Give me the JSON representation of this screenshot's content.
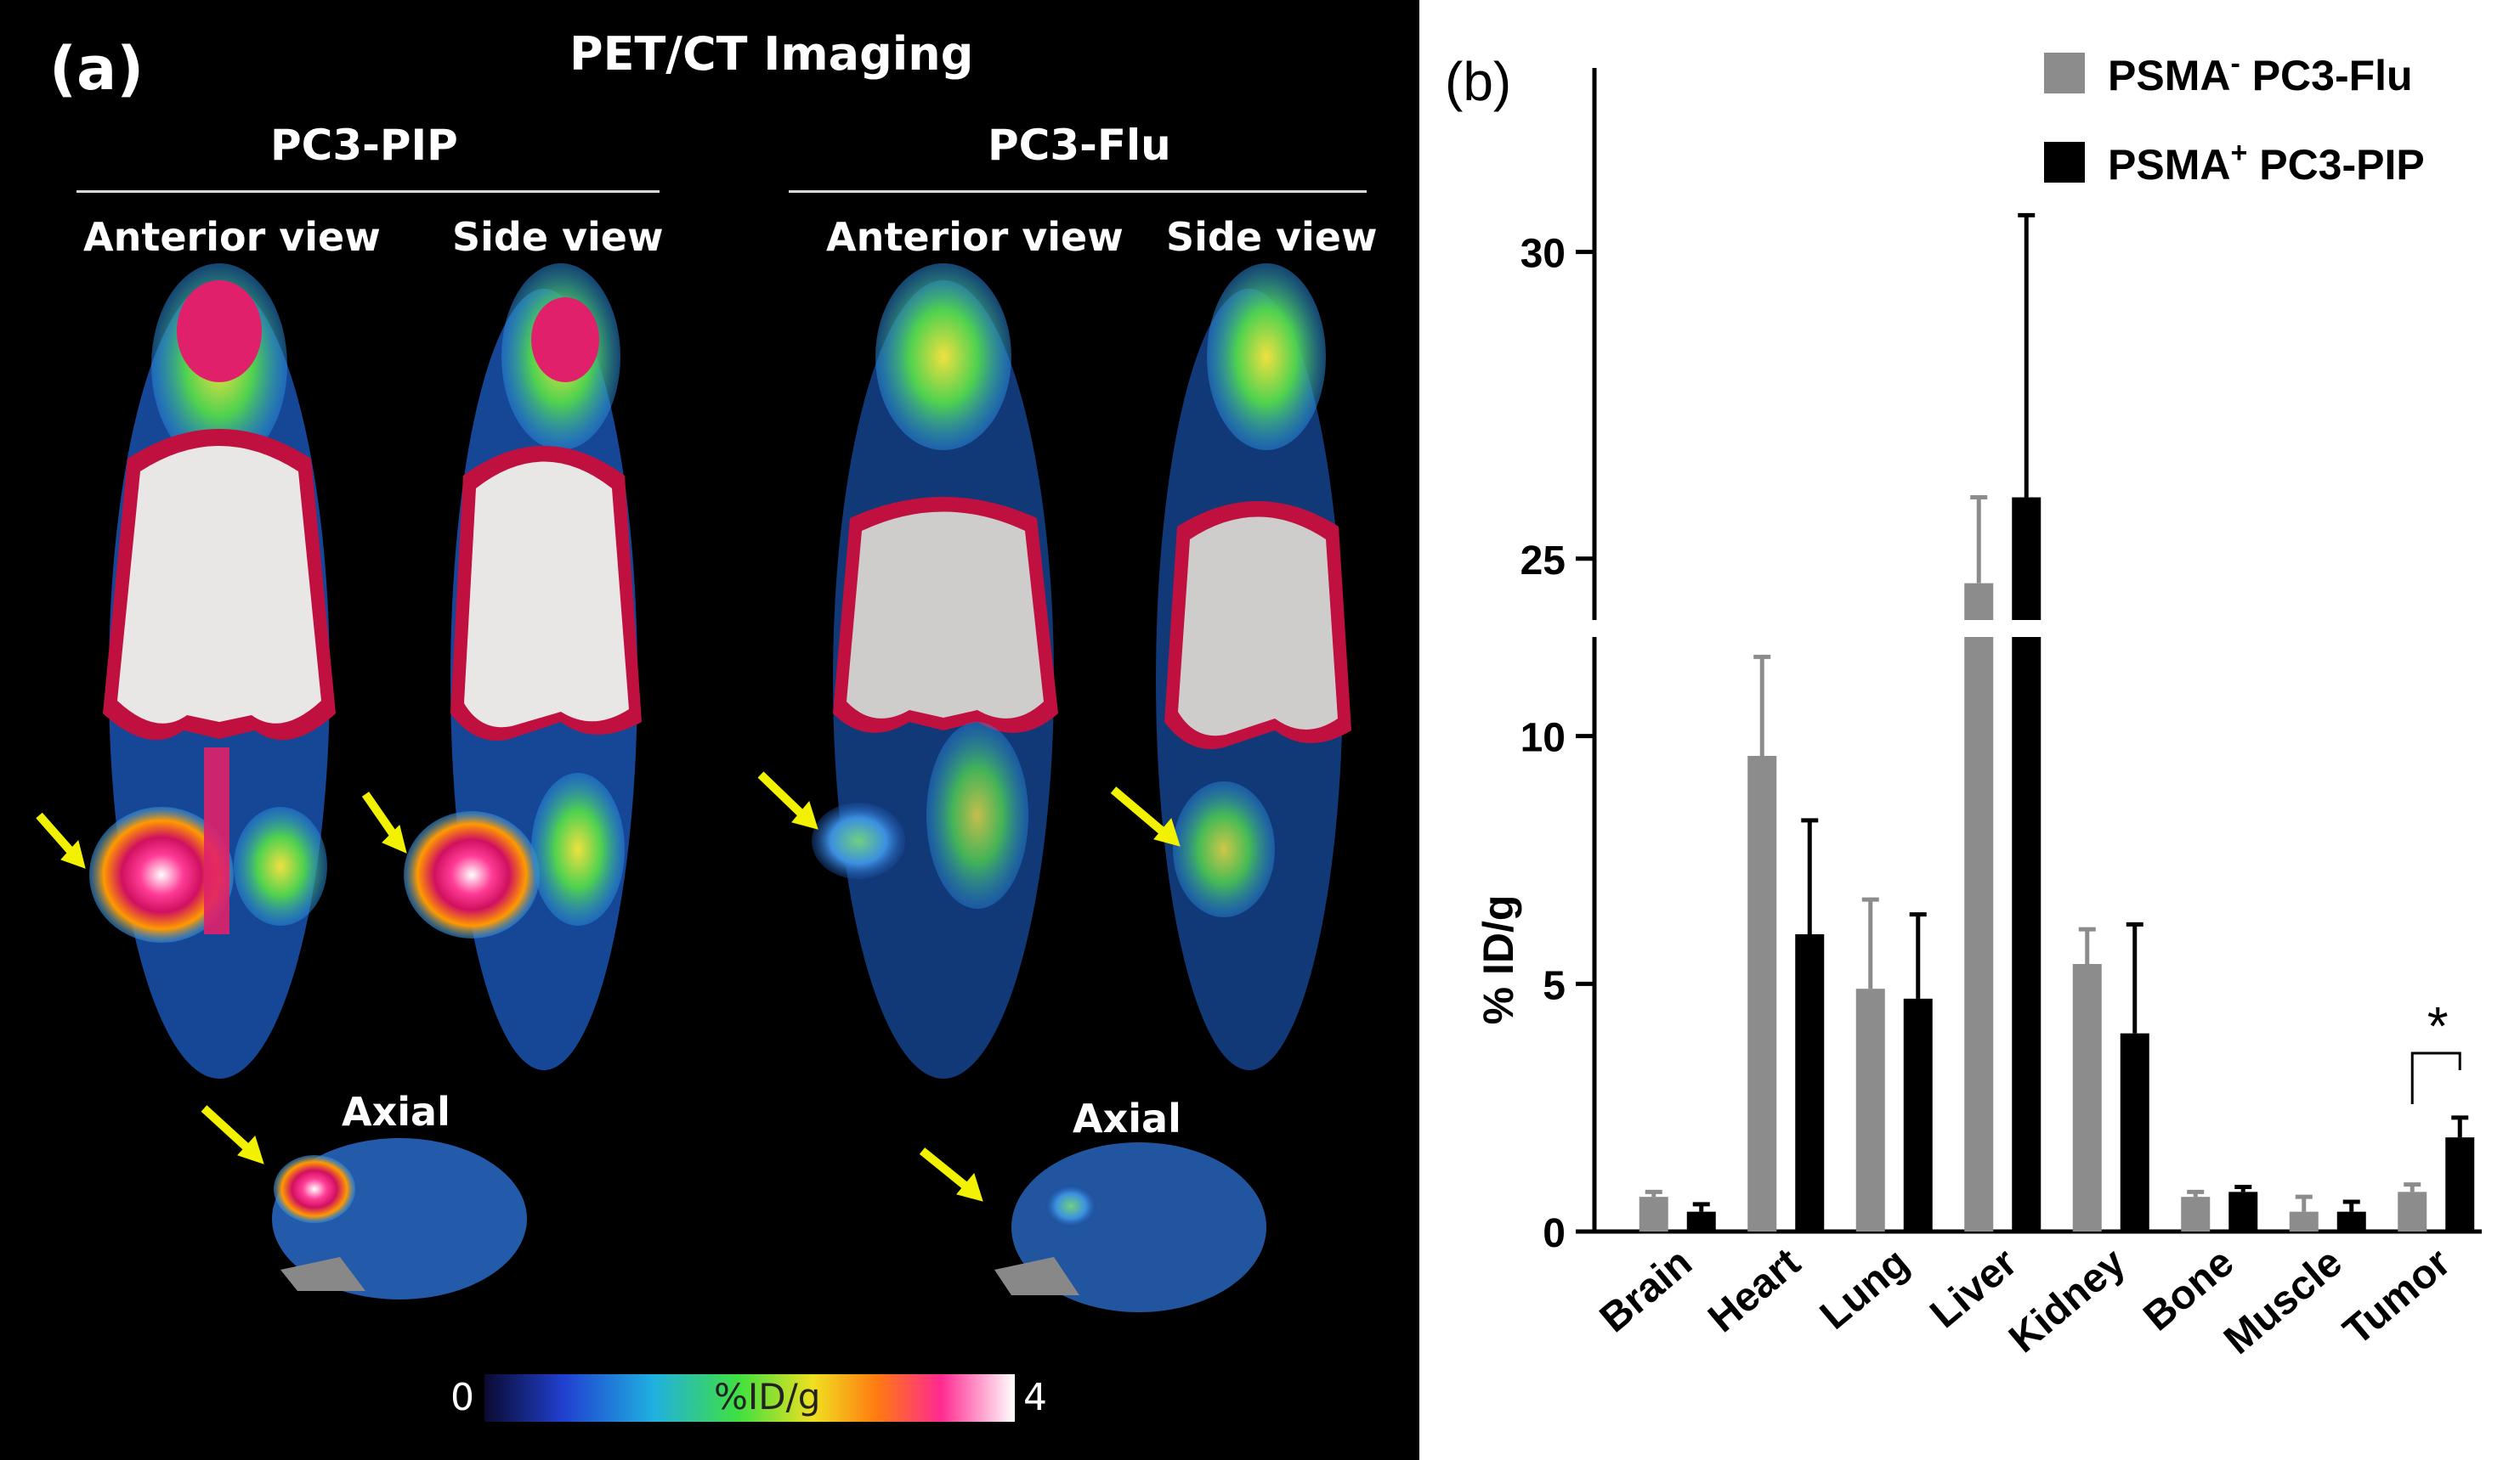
{
  "panel_a": {
    "label": "(a)",
    "title": "PET/CT Imaging",
    "groups": [
      {
        "name": "PC3-PIP",
        "views": [
          "Anterior view",
          "Side view"
        ],
        "axial": "Axial"
      },
      {
        "name": "PC3-Flu",
        "views": [
          "Anterior view",
          "Side view"
        ],
        "axial": "Axial"
      }
    ],
    "colorbar": {
      "min": "0",
      "max": "4",
      "label": "%ID/g"
    },
    "colors": {
      "background": "#000000",
      "arrow": "#f2f200"
    }
  },
  "chart_data": {
    "type": "bar",
    "panel_label": "(b)",
    "title": "",
    "xlabel": "",
    "ylabel": "% ID/g",
    "categories": [
      "Brain",
      "Heart",
      "Lung",
      "Liver",
      "Kidney",
      "Bone",
      "Muscle",
      "Tumor"
    ],
    "series": [
      {
        "name": "PSMA- PC3-Flu",
        "legend_name": "PSMA",
        "legend_sup": "-",
        "legend_suffix": " PC3-Flu",
        "color": "#8c8c8c",
        "values": [
          0.7,
          9.6,
          4.9,
          24.6,
          5.4,
          0.7,
          0.4,
          0.8
        ],
        "errors": [
          0.1,
          2.0,
          1.8,
          1.4,
          0.7,
          0.1,
          0.3,
          0.15
        ]
      },
      {
        "name": "PSMA+ PC3-PIP",
        "legend_name": "PSMA",
        "legend_sup": "+",
        "legend_suffix": " PC3-PIP",
        "color": "#000000",
        "values": [
          0.4,
          6.0,
          4.7,
          26.0,
          4.0,
          0.8,
          0.4,
          1.9
        ],
        "errors": [
          0.15,
          2.3,
          1.7,
          4.6,
          2.2,
          0.1,
          0.2,
          0.4
        ]
      }
    ],
    "axis_break": {
      "lower_range": [
        0,
        12
      ],
      "upper_range": [
        24,
        33
      ]
    },
    "yticks": [
      "0",
      "5",
      "10",
      "25",
      "30"
    ],
    "annotation": {
      "text": "*",
      "category": "Tumor"
    }
  }
}
